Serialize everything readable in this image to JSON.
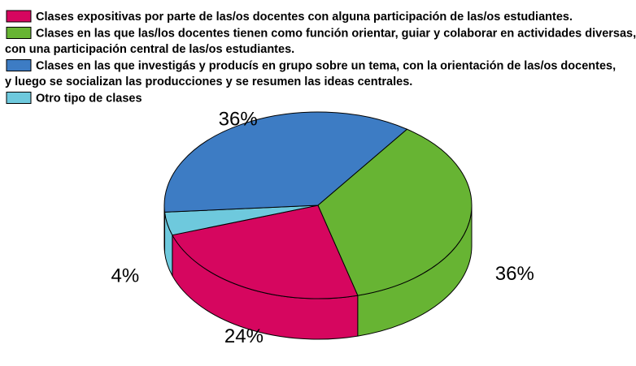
{
  "chart_data": {
    "type": "pie",
    "style": "3d",
    "legend_position": "top-left",
    "slices": [
      {
        "label_lines": [
          "Clases expositivas por parte de las/os docentes con alguna participación de las/os estudiantes."
        ],
        "value": 24,
        "value_label": "24%",
        "color": "#d6065f",
        "side_color": "#d6065f"
      },
      {
        "label_lines": [
          "Clases en las que las/los docentes tienen como función orientar, guiar y colaborar   en actividades diversas,",
          "con una participación central de las/os estudiantes."
        ],
        "value": 36,
        "value_label": "36%",
        "color": "#67b433",
        "side_color": "#67b433"
      },
      {
        "label_lines": [
          "Clases en las que investigás y producís en grupo sobre un tema, con la orientación de las/os docentes,",
          "y luego se socializan las producciones y se resumen las ideas centrales."
        ],
        "value": 36,
        "value_label": "36%",
        "color": "#3d7cc4",
        "side_color": "#3d7cc4"
      },
      {
        "label_lines": [
          "Otro tipo de clases"
        ],
        "value": 4,
        "value_label": "4%",
        "color": "#6ec9dd",
        "side_color": "#6ec9dd"
      }
    ]
  }
}
